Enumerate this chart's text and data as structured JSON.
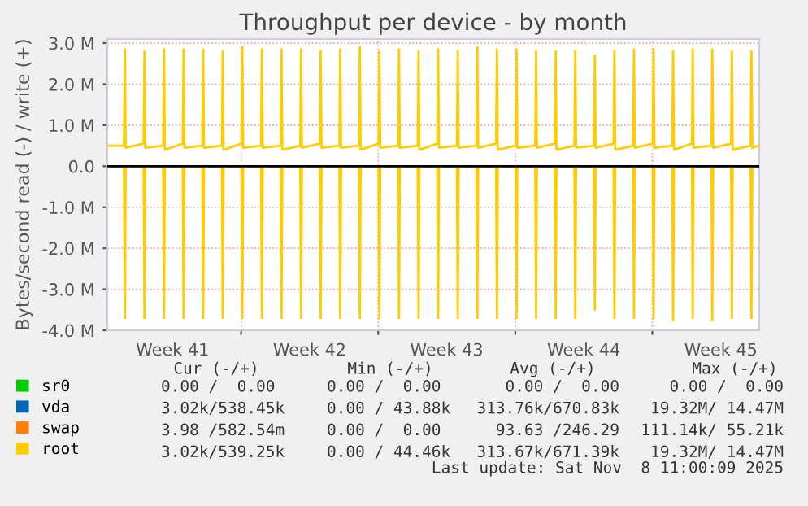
{
  "chart_data": {
    "type": "line",
    "title": "Throughput per device - by month",
    "ylabel": "Bytes/second read (-) / write (+)",
    "xlim": [
      "2025-10-06T04:00",
      "2025-11-08T11:00"
    ],
    "xticks": [
      {
        "value": "2025-10-09T12:00",
        "label": "Week 41"
      },
      {
        "value": "2025-10-13T00:00",
        "label": null
      },
      {
        "value": "2025-10-16T12:00",
        "label": "Week 42"
      },
      {
        "value": "2025-10-20T00:00",
        "label": null
      },
      {
        "value": "2025-10-23T12:00",
        "label": "Week 43"
      },
      {
        "value": "2025-10-27T00:00",
        "label": null
      },
      {
        "value": "2025-10-30T12:00",
        "label": "Week 44"
      },
      {
        "value": "2025-11-03T00:00",
        "label": null
      },
      {
        "value": "2025-11-06T12:00",
        "label": "Week 45"
      }
    ],
    "ylim": [
      -4000000,
      3100000
    ],
    "yticks": [
      {
        "value": -4000000,
        "label": "-4.0 M"
      },
      {
        "value": -3000000,
        "label": "-3.0 M"
      },
      {
        "value": -2000000,
        "label": "-2.0 M"
      },
      {
        "value": -1000000,
        "label": "-1.0 M"
      },
      {
        "value": 0,
        "label": "0.0"
      },
      {
        "value": 1000000,
        "label": "1.0 M"
      },
      {
        "value": 2000000,
        "label": "2.0 M"
      },
      {
        "value": 3000000,
        "label": "3.0 M"
      }
    ],
    "grid": true,
    "legend": "bottom left",
    "line_style": "solid",
    "marker": "none",
    "ref_lines": [
      {
        "axis": "y",
        "value": 0,
        "color": "#000000"
      }
    ],
    "x": [
      "2025-10-06T04:00",
      "2025-10-07T00:30",
      "2025-10-07T01:30",
      "2025-10-07T02:30",
      "2025-10-08T00:30",
      "2025-10-08T01:30",
      "2025-10-08T02:30",
      "2025-10-09T00:30",
      "2025-10-09T01:30",
      "2025-10-09T02:30",
      "2025-10-10T00:30",
      "2025-10-10T01:30",
      "2025-10-10T02:30",
      "2025-10-11T00:30",
      "2025-10-11T01:30",
      "2025-10-11T02:30",
      "2025-10-12T00:30",
      "2025-10-12T01:30",
      "2025-10-12T02:30",
      "2025-10-13T00:30",
      "2025-10-13T01:30",
      "2025-10-13T02:30",
      "2025-10-14T00:30",
      "2025-10-14T01:30",
      "2025-10-14T02:30",
      "2025-10-15T00:30",
      "2025-10-15T01:30",
      "2025-10-15T02:30",
      "2025-10-16T00:30",
      "2025-10-16T01:30",
      "2025-10-16T02:30",
      "2025-10-17T00:30",
      "2025-10-17T01:30",
      "2025-10-17T02:30",
      "2025-10-18T00:30",
      "2025-10-18T01:30",
      "2025-10-18T02:30",
      "2025-10-19T00:30",
      "2025-10-19T01:30",
      "2025-10-19T02:30",
      "2025-10-20T00:30",
      "2025-10-20T01:30",
      "2025-10-20T02:30",
      "2025-10-21T00:30",
      "2025-10-21T01:30",
      "2025-10-21T02:30",
      "2025-10-22T00:30",
      "2025-10-22T01:30",
      "2025-10-22T02:30",
      "2025-10-23T00:30",
      "2025-10-23T01:30",
      "2025-10-23T02:30",
      "2025-10-24T00:30",
      "2025-10-24T01:30",
      "2025-10-24T02:30",
      "2025-10-25T00:30",
      "2025-10-25T01:30",
      "2025-10-25T02:30",
      "2025-10-26T00:30",
      "2025-10-26T01:30",
      "2025-10-26T02:30",
      "2025-10-27T00:30",
      "2025-10-27T01:30",
      "2025-10-27T02:30",
      "2025-10-28T00:30",
      "2025-10-28T01:30",
      "2025-10-28T02:30",
      "2025-10-29T00:30",
      "2025-10-29T01:30",
      "2025-10-29T02:30",
      "2025-10-30T00:30",
      "2025-10-30T01:30",
      "2025-10-30T02:30",
      "2025-10-31T00:30",
      "2025-10-31T01:30",
      "2025-10-31T02:30",
      "2025-11-01T00:30",
      "2025-11-01T01:30",
      "2025-11-01T02:30",
      "2025-11-02T00:30",
      "2025-11-02T01:30",
      "2025-11-02T02:30",
      "2025-11-03T00:30",
      "2025-11-03T01:30",
      "2025-11-03T02:30",
      "2025-11-04T00:30",
      "2025-11-04T01:30",
      "2025-11-04T02:30",
      "2025-11-05T00:30",
      "2025-11-05T01:30",
      "2025-11-05T02:30",
      "2025-11-06T00:30",
      "2025-11-06T01:30",
      "2025-11-06T02:30",
      "2025-11-07T00:30",
      "2025-11-07T01:30",
      "2025-11-07T02:30",
      "2025-11-08T00:30",
      "2025-11-08T01:30",
      "2025-11-08T02:30",
      "2025-11-08T11:00"
    ],
    "series": [
      {
        "name": "sr0",
        "color": "#00cc00",
        "values": [
          null,
          null,
          null,
          null,
          null,
          null,
          null,
          null,
          null,
          null,
          null,
          null,
          null,
          null,
          null,
          null,
          null,
          null,
          null,
          null,
          null,
          null,
          null,
          null,
          null,
          null,
          null,
          null,
          null,
          null,
          null,
          null,
          null,
          null,
          null,
          null,
          null,
          null,
          null,
          null,
          null,
          null,
          null,
          null,
          null,
          null,
          null,
          null,
          null,
          null,
          null,
          null,
          null,
          null,
          null,
          null,
          null,
          null,
          null,
          null,
          null,
          null,
          null,
          null,
          null,
          null,
          null,
          null,
          null,
          null,
          null,
          null,
          null,
          null,
          null,
          null,
          null,
          null,
          null,
          null,
          null,
          null,
          null,
          null,
          null,
          null,
          null,
          null,
          null,
          null,
          null,
          null,
          null,
          null,
          null,
          null,
          null,
          null,
          null,
          null,
          null
        ]
      },
      {
        "name": "vda",
        "color": "#0066b3",
        "values": [
          null,
          null,
          null,
          null,
          null,
          null,
          null,
          null,
          null,
          null,
          null,
          null,
          null,
          null,
          null,
          null,
          null,
          null,
          null,
          null,
          null,
          null,
          null,
          null,
          null,
          null,
          null,
          null,
          null,
          null,
          null,
          null,
          null,
          null,
          null,
          null,
          null,
          null,
          null,
          null,
          null,
          null,
          null,
          null,
          null,
          null,
          null,
          null,
          null,
          null,
          null,
          null,
          null,
          null,
          null,
          null,
          null,
          null,
          null,
          null,
          null,
          null,
          null,
          null,
          null,
          null,
          null,
          null,
          null,
          null,
          null,
          null,
          null,
          null,
          null,
          null,
          null,
          null,
          null,
          null,
          null,
          null,
          null,
          null,
          null,
          null,
          null,
          null,
          null,
          null,
          null,
          null,
          null,
          null,
          null,
          null,
          null,
          null,
          null,
          null,
          null
        ]
      },
      {
        "name": "swap",
        "color": "#ff8000",
        "values": [
          null,
          null,
          null,
          null,
          null,
          null,
          null,
          null,
          null,
          null,
          null,
          null,
          null,
          null,
          null,
          null,
          null,
          null,
          null,
          null,
          null,
          null,
          null,
          null,
          null,
          null,
          null,
          null,
          null,
          null,
          null,
          null,
          null,
          null,
          null,
          null,
          null,
          null,
          null,
          null,
          null,
          null,
          null,
          null,
          null,
          null,
          null,
          null,
          null,
          null,
          null,
          null,
          null,
          null,
          null,
          null,
          null,
          null,
          null,
          null,
          null,
          null,
          null,
          null,
          null,
          null,
          null,
          null,
          null,
          null,
          null,
          null,
          null,
          null,
          null,
          null,
          null,
          null,
          null,
          null,
          null,
          null,
          null,
          null,
          null,
          null,
          null,
          null,
          null,
          null,
          null,
          null,
          null,
          null,
          null,
          null,
          null,
          null,
          null,
          null,
          null
        ]
      },
      {
        "name": "root",
        "color": "#ffcc00",
        "values": [
          500000,
          500000,
          2850000,
          450000,
          550000,
          2800000,
          450000,
          500000,
          2850000,
          400000,
          550000,
          2850000,
          450000,
          500000,
          2850000,
          450000,
          500000,
          2800000,
          400000,
          550000,
          2900000,
          450000,
          500000,
          2850000,
          450000,
          500000,
          2850000,
          400000,
          500000,
          2850000,
          450000,
          550000,
          2800000,
          450000,
          500000,
          2850000,
          450000,
          500000,
          2900000,
          400000,
          550000,
          2800000,
          450000,
          500000,
          2850000,
          450000,
          500000,
          2800000,
          400000,
          550000,
          2850000,
          450000,
          500000,
          2800000,
          450000,
          500000,
          2900000,
          450000,
          550000,
          2850000,
          400000,
          500000,
          2850000,
          450000,
          500000,
          2800000,
          450000,
          550000,
          2800000,
          400000,
          500000,
          2800000,
          450000,
          500000,
          2700000,
          450000,
          550000,
          2800000,
          400000,
          500000,
          2850000,
          450000,
          550000,
          2850000,
          450000,
          500000,
          2800000,
          400000,
          550000,
          2850000,
          450000,
          500000,
          2850000,
          450000,
          550000,
          2800000,
          400000,
          500000,
          2800000,
          450000,
          500000
        ]
      },
      {
        "color": "#ffcc00",
        "values": [
          0,
          0,
          -3700000,
          0,
          0,
          -3700000,
          0,
          0,
          -3700000,
          0,
          0,
          -3700000,
          0,
          0,
          -3700000,
          0,
          0,
          -3700000,
          0,
          0,
          -3700000,
          0,
          0,
          -3700000,
          0,
          0,
          -3700000,
          0,
          0,
          -3700000,
          0,
          0,
          -3700000,
          0,
          0,
          -3700000,
          0,
          0,
          -3700000,
          0,
          0,
          -3700000,
          0,
          0,
          -3700000,
          0,
          0,
          -3700000,
          0,
          0,
          -3700000,
          0,
          0,
          -3700000,
          0,
          0,
          -3700000,
          0,
          0,
          -3700000,
          0,
          0,
          -3700000,
          0,
          0,
          -3700000,
          0,
          0,
          -3700000,
          0,
          0,
          -3700000,
          0,
          0,
          -3500000,
          0,
          0,
          -3700000,
          0,
          0,
          -3700000,
          0,
          0,
          -3700000,
          0,
          0,
          -3750000,
          0,
          0,
          -3700000,
          0,
          0,
          -3750000,
          0,
          0,
          -3700000,
          0,
          0,
          -3700000,
          0,
          0
        ]
      }
    ],
    "annotations": [
      "Cur (-/+)",
      "Min (-/+)",
      "Avg (-/+)",
      "Max (-/+)",
      "0.00 /  0.00",
      "0.00 /  0.00",
      "0.00 /  0.00",
      "0.00 /  0.00",
      "3.02k/538.45k",
      "0.00 / 43.88k",
      "313.76k/670.83k",
      "19.32M/ 14.47M",
      "3.98 /582.54m",
      "0.00 /  0.00",
      "93.63 /246.29",
      "111.14k/ 55.21k",
      "3.02k/539.25k",
      "0.00 / 44.46k",
      "313.67k/671.39k",
      "19.32M/ 14.47M",
      "Last update: Sat Nov  8 11:00:09 2025"
    ]
  }
}
